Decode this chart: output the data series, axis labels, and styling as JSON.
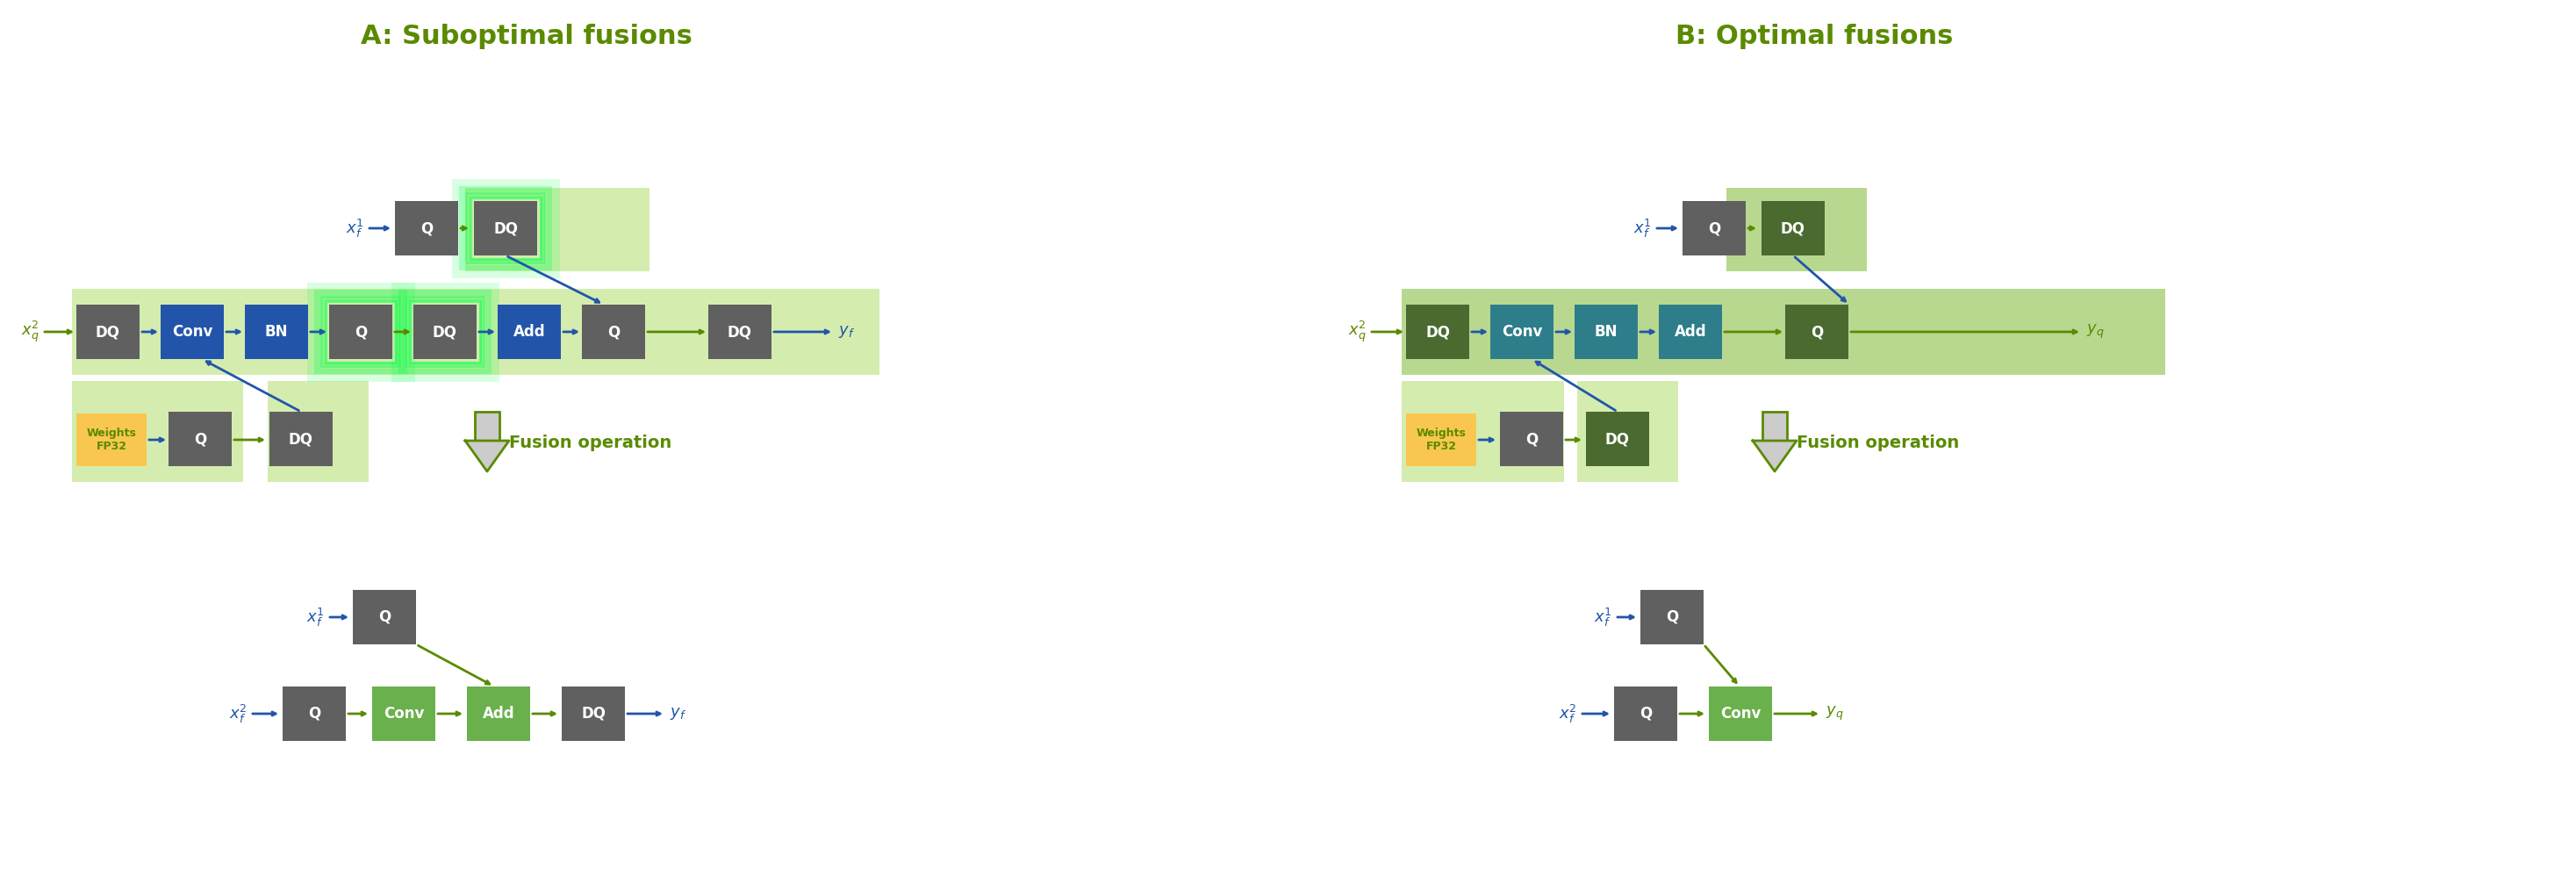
{
  "fig_width": 29.35,
  "fig_height": 9.99,
  "bg_color": "#ffffff",
  "title_A": "A: Suboptimal fusions",
  "title_B": "B: Optimal fusions",
  "title_color": "#5a8a00",
  "title_fontsize": 22,
  "fusion_label": "Fusion operation",
  "fusion_color": "#5a8a00",
  "gray": "#606060",
  "blue": "#2255aa",
  "teal": "#2e7d8a",
  "dark_olive": "#4a6a30",
  "green_bright": "#6ab04c",
  "green_dark_box": "#5a8a00",
  "yellow": "#f9c74f",
  "bg_green_light": "#d4edaf",
  "bg_green_dark": "#b8d890",
  "arrow_blue": "#2255aa",
  "arrow_green": "#5a8a00",
  "glow_color": "#00ff44"
}
